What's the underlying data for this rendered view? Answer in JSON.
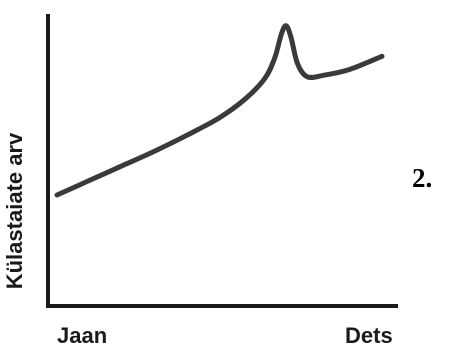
{
  "chart_data": {
    "type": "line",
    "title": "",
    "ylabel": "Külastaiate arv",
    "xlabel": "",
    "x_tick_labels": [
      "Jaan",
      "Dets"
    ],
    "x_range": [
      0,
      1
    ],
    "ylim": [
      0,
      1
    ],
    "grid": false,
    "legend": "none",
    "series": [
      {
        "color": "#3a3a3a",
        "points": [
          [
            0.0,
            0.38
          ],
          [
            0.1,
            0.43
          ],
          [
            0.2,
            0.48
          ],
          [
            0.3,
            0.53
          ],
          [
            0.4,
            0.585
          ],
          [
            0.5,
            0.645
          ],
          [
            0.58,
            0.71
          ],
          [
            0.64,
            0.78
          ],
          [
            0.67,
            0.85
          ],
          [
            0.69,
            0.93
          ],
          [
            0.705,
            0.96
          ],
          [
            0.72,
            0.92
          ],
          [
            0.74,
            0.83
          ],
          [
            0.77,
            0.785
          ],
          [
            0.82,
            0.79
          ],
          [
            0.9,
            0.81
          ],
          [
            1.0,
            0.855
          ]
        ]
      }
    ]
  },
  "badge": "2."
}
